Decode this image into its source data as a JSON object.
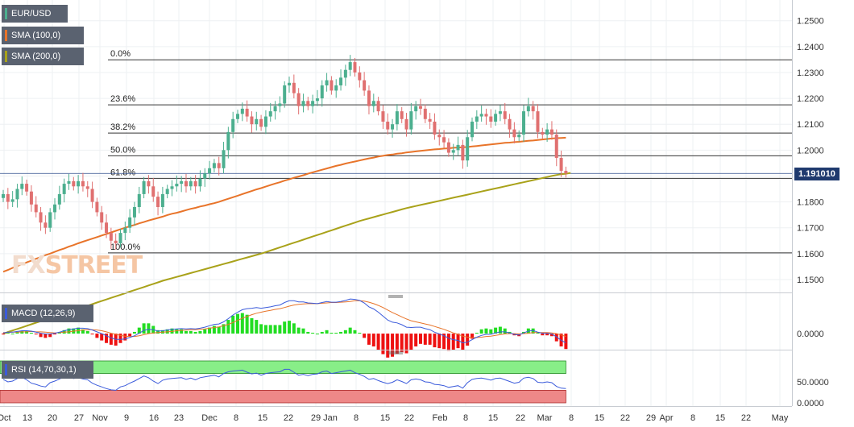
{
  "chart_data": [
    {
      "type": "candlestick",
      "name": "EUR/USD",
      "legend": [
        {
          "label": "EUR/USD",
          "color": "#4caf8f"
        },
        {
          "label": "SMA (100,0)",
          "color": "#e8742a"
        },
        {
          "label": "SMA (200,0)",
          "color": "#a9a21a"
        }
      ],
      "last_price": "1.191010",
      "ylim": [
        1.145,
        1.258
      ],
      "y_ticks": [
        "1.2500",
        "1.2400",
        "1.2300",
        "1.2200",
        "1.2100",
        "1.2000",
        "1.1900",
        "1.1800",
        "1.1700",
        "1.1600",
        "1.1500"
      ],
      "fibonacci": [
        {
          "label": "0.0%",
          "value": 1.2349
        },
        {
          "label": "23.6%",
          "value": 1.2175
        },
        {
          "label": "38.2%",
          "value": 1.2066
        },
        {
          "label": "50.0%",
          "value": 1.1978
        },
        {
          "label": "61.8%",
          "value": 1.1891
        },
        {
          "label": "100.0%",
          "value": 1.1603
        }
      ],
      "closes": [
        1.183,
        1.18,
        1.181,
        1.185,
        1.187,
        1.184,
        1.179,
        1.176,
        1.172,
        1.17,
        1.176,
        1.179,
        1.183,
        1.187,
        1.188,
        1.186,
        1.188,
        1.186,
        1.185,
        1.18,
        1.176,
        1.172,
        1.168,
        1.165,
        1.164,
        1.168,
        1.17,
        1.174,
        1.178,
        1.183,
        1.188,
        1.186,
        1.182,
        1.178,
        1.183,
        1.185,
        1.186,
        1.187,
        1.188,
        1.186,
        1.188,
        1.186,
        1.189,
        1.191,
        1.193,
        1.195,
        1.193,
        1.2,
        1.207,
        1.212,
        1.214,
        1.216,
        1.213,
        1.21,
        1.212,
        1.209,
        1.213,
        1.215,
        1.217,
        1.218,
        1.225,
        1.226,
        1.222,
        1.217,
        1.219,
        1.217,
        1.219,
        1.22,
        1.225,
        1.227,
        1.223,
        1.225,
        1.228,
        1.231,
        1.234,
        1.23,
        1.227,
        1.223,
        1.217,
        1.219,
        1.215,
        1.211,
        1.208,
        1.21,
        1.215,
        1.212,
        1.208,
        1.215,
        1.217,
        1.216,
        1.212,
        1.211,
        1.206,
        1.205,
        1.203,
        1.199,
        1.2,
        1.202,
        1.196,
        1.205,
        1.211,
        1.213,
        1.214,
        1.213,
        1.211,
        1.214,
        1.215,
        1.212,
        1.208,
        1.205,
        1.206,
        1.215,
        1.217,
        1.215,
        1.207,
        1.206,
        1.208,
        1.206,
        1.197,
        1.192,
        1.191
      ],
      "sma100": [
        1.153,
        1.1537,
        1.1545,
        1.1552,
        1.1559,
        1.1566,
        1.1573,
        1.158,
        1.1587,
        1.1594,
        1.16,
        1.1607,
        1.1614,
        1.162,
        1.1627,
        1.1633,
        1.164,
        1.1646,
        1.1652,
        1.1658,
        1.1664,
        1.167,
        1.1676,
        1.1682,
        1.1688,
        1.1694,
        1.17,
        1.1706,
        1.1711,
        1.1717,
        1.1722,
        1.1728,
        1.1733,
        1.1738,
        1.1743,
        1.1749,
        1.1754,
        1.1758,
        1.1763,
        1.1768,
        1.1773,
        1.1777,
        1.1782,
        1.1786,
        1.1791,
        1.1795,
        1.18,
        1.1806,
        1.1812,
        1.1818,
        1.1824,
        1.183,
        1.1836,
        1.1842,
        1.1848,
        1.1853,
        1.1859,
        1.1865,
        1.1871,
        1.1876,
        1.1882,
        1.1887,
        1.1893,
        1.1898,
        1.1903,
        1.1909,
        1.1914,
        1.1919,
        1.1924,
        1.1929,
        1.1934,
        1.1939,
        1.1943,
        1.1948,
        1.1952,
        1.1956,
        1.196,
        1.1964,
        1.1968,
        1.1971,
        1.1975,
        1.1978,
        1.1981,
        1.1983,
        1.1986,
        1.1988,
        1.1991,
        1.1993,
        1.1995,
        1.1997,
        1.1999,
        1.2001,
        1.2003,
        1.2004,
        1.2006,
        1.2007,
        1.2009,
        1.201,
        1.2011,
        1.2012,
        1.2014,
        1.2016,
        1.2018,
        1.202,
        1.2022,
        1.2024,
        1.2026,
        1.2028,
        1.2029,
        1.2031,
        1.2032,
        1.2034,
        1.2036,
        1.2037,
        1.2039,
        1.2041,
        1.2043,
        1.2045,
        1.2046,
        1.2047,
        1.2048
      ],
      "sma200": [
        1.129,
        1.1297,
        1.1303,
        1.1309,
        1.1315,
        1.1321,
        1.1327,
        1.1333,
        1.1339,
        1.1345,
        1.1351,
        1.1357,
        1.1363,
        1.1369,
        1.1375,
        1.1381,
        1.1387,
        1.1393,
        1.1399,
        1.1405,
        1.1411,
        1.1417,
        1.1423,
        1.1429,
        1.1435,
        1.1441,
        1.1447,
        1.1453,
        1.1459,
        1.1465,
        1.1471,
        1.1477,
        1.1483,
        1.1489,
        1.1495,
        1.15,
        1.1505,
        1.151,
        1.1515,
        1.152,
        1.1525,
        1.153,
        1.1535,
        1.154,
        1.1545,
        1.155,
        1.1555,
        1.156,
        1.1565,
        1.157,
        1.1575,
        1.158,
        1.1585,
        1.159,
        1.1595,
        1.16,
        1.1606,
        1.1612,
        1.1618,
        1.1624,
        1.163,
        1.1636,
        1.1642,
        1.1648,
        1.1654,
        1.166,
        1.1666,
        1.1672,
        1.1678,
        1.1684,
        1.169,
        1.1696,
        1.1702,
        1.1708,
        1.1714,
        1.172,
        1.1726,
        1.1731,
        1.1736,
        1.1741,
        1.1746,
        1.1751,
        1.1756,
        1.1761,
        1.1766,
        1.1771,
        1.1776,
        1.178,
        1.1784,
        1.1788,
        1.1792,
        1.1796,
        1.18,
        1.1804,
        1.1808,
        1.1812,
        1.1816,
        1.182,
        1.1824,
        1.1828,
        1.1832,
        1.1836,
        1.184,
        1.1844,
        1.1848,
        1.1852,
        1.1856,
        1.186,
        1.1864,
        1.1868,
        1.1872,
        1.1876,
        1.188,
        1.1884,
        1.1888,
        1.1892,
        1.1896,
        1.19,
        1.1904,
        1.1907,
        1.1909,
        1.1912
      ]
    },
    {
      "type": "macd",
      "name": "MACD (12,26,9)",
      "legend_color": "#3b5bdb",
      "y_ticks": [
        "0.0000"
      ],
      "ylim": [
        -0.0045,
        0.0095
      ],
      "macd": [
        0.0002,
        0.0004,
        0.0004,
        0.0006,
        0.0008,
        0.0008,
        0.0007,
        0.0004,
        0.0001,
        -0.0001,
        -0.0001,
        0.0001,
        0.0004,
        0.0008,
        0.0011,
        0.0013,
        0.0015,
        0.0015,
        0.0014,
        0.001,
        0.0005,
        0.0,
        -0.0006,
        -0.0012,
        -0.0016,
        -0.0016,
        -0.0015,
        -0.0011,
        -0.0006,
        0.0001,
        0.0009,
        0.0012,
        0.0011,
        0.0007,
        0.0008,
        0.001,
        0.0012,
        0.0013,
        0.0014,
        0.0013,
        0.0014,
        0.0013,
        0.0015,
        0.0018,
        0.0022,
        0.0026,
        0.0027,
        0.0033,
        0.0042,
        0.0052,
        0.006,
        0.0067,
        0.007,
        0.0071,
        0.0073,
        0.0071,
        0.0073,
        0.0075,
        0.0078,
        0.008,
        0.0087,
        0.0092,
        0.0092,
        0.0089,
        0.0089,
        0.0086,
        0.0085,
        0.0084,
        0.0087,
        0.009,
        0.0088,
        0.0088,
        0.009,
        0.0093,
        0.0097,
        0.0096,
        0.0093,
        0.0086,
        0.0075,
        0.0069,
        0.006,
        0.0049,
        0.0038,
        0.0032,
        0.003,
        0.0025,
        0.0018,
        0.0017,
        0.0018,
        0.0018,
        0.0014,
        0.0011,
        0.0004,
        -0.0001,
        -0.0006,
        -0.0013,
        -0.0017,
        -0.0019,
        -0.0026,
        -0.0024,
        -0.0017,
        -0.001,
        -0.0005,
        -0.0002,
        -0.0002,
        0.0002,
        0.0005,
        0.0005,
        0.0002,
        -0.0002,
        -0.0004,
        0.0002,
        0.0007,
        0.0009,
        0.0004,
        0.0001,
        0.0001,
        -0.0001,
        -0.0009,
        -0.0019,
        -0.0026
      ],
      "signal": [
        0.0003,
        0.0003,
        0.0004,
        0.0004,
        0.0005,
        0.0005,
        0.0006,
        0.0005,
        0.0005,
        0.0004,
        0.0003,
        0.0002,
        0.0003,
        0.0004,
        0.0005,
        0.0007,
        0.0008,
        0.001,
        0.0011,
        0.0011,
        0.001,
        0.0008,
        0.0005,
        0.0001,
        -0.0002,
        -0.0005,
        -0.0007,
        -0.0008,
        -0.0008,
        -0.0006,
        -0.0003,
        0.0,
        0.0002,
        0.0003,
        0.0004,
        0.0005,
        0.0006,
        0.0008,
        0.0009,
        0.001,
        0.0011,
        0.0011,
        0.0012,
        0.0013,
        0.0015,
        0.0017,
        0.0019,
        0.0022,
        0.0026,
        0.0031,
        0.0037,
        0.0043,
        0.0048,
        0.0053,
        0.0057,
        0.006,
        0.0063,
        0.0065,
        0.0068,
        0.007,
        0.0073,
        0.0077,
        0.008,
        0.0082,
        0.0083,
        0.0084,
        0.0084,
        0.0084,
        0.0085,
        0.0086,
        0.0087,
        0.0087,
        0.0088,
        0.0089,
        0.009,
        0.0092,
        0.0092,
        0.0091,
        0.0088,
        0.0084,
        0.0079,
        0.0073,
        0.0066,
        0.0059,
        0.0053,
        0.0047,
        0.0041,
        0.0036,
        0.0033,
        0.003,
        0.0027,
        0.0024,
        0.002,
        0.0016,
        0.0012,
        0.0007,
        0.0002,
        -0.0002,
        -0.0007,
        -0.001,
        -0.0011,
        -0.0011,
        -0.001,
        -0.0008,
        -0.0007,
        -0.0005,
        -0.0003,
        -0.0001,
        0.0,
        0.0,
        -0.0001,
        0.0,
        0.0001,
        0.0003,
        0.0003,
        0.0003,
        0.0003,
        0.0002,
        0.0,
        -0.0004,
        -0.0008
      ]
    },
    {
      "type": "rsi",
      "name": "RSI (14,70,30,1)",
      "legend_color": "#3b5bdb",
      "y_ticks": [
        "50.0000",
        "0.0000"
      ],
      "ylim": [
        0,
        100
      ],
      "overbought": 70,
      "oversold": 30,
      "values": [
        56,
        50,
        52,
        58,
        61,
        55,
        47,
        44,
        40,
        38,
        48,
        52,
        57,
        62,
        63,
        58,
        60,
        57,
        55,
        47,
        42,
        38,
        34,
        31,
        30,
        38,
        41,
        47,
        52,
        58,
        64,
        60,
        52,
        46,
        54,
        57,
        58,
        59,
        60,
        56,
        59,
        55,
        60,
        62,
        64,
        66,
        62,
        70,
        74,
        76,
        77,
        78,
        73,
        69,
        71,
        66,
        70,
        72,
        73,
        74,
        80,
        80,
        73,
        66,
        68,
        65,
        68,
        69,
        74,
        76,
        70,
        72,
        74,
        76,
        78,
        72,
        68,
        63,
        56,
        58,
        53,
        49,
        46,
        49,
        55,
        51,
        46,
        55,
        57,
        55,
        50,
        49,
        44,
        43,
        41,
        37,
        39,
        41,
        35,
        48,
        56,
        58,
        59,
        57,
        54,
        58,
        59,
        55,
        51,
        47,
        49,
        59,
        61,
        58,
        49,
        48,
        50,
        48,
        39,
        35,
        34
      ]
    },
    {
      "type": "x-axis",
      "tick_labels": [
        "Oct",
        "13",
        "20",
        "27",
        "Nov",
        "9",
        "16",
        "23",
        "Dec",
        "8",
        "15",
        "22",
        "29",
        "Jan",
        "8",
        "15",
        "22",
        "Feb",
        "8",
        "15",
        "22",
        "Mar",
        "8",
        "15",
        "22",
        "29",
        "Apr",
        "8",
        "15",
        "22",
        "May"
      ]
    }
  ]
}
